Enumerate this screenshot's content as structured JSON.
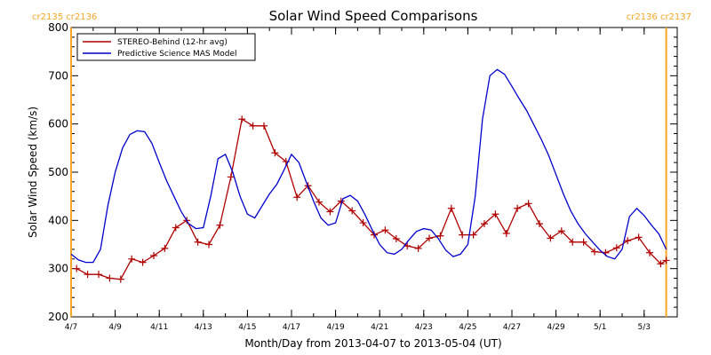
{
  "chart_data": {
    "type": "line",
    "title": "Solar Wind Speed Comparisons",
    "xlabel": "Month/Day from 2013-04-07 to 2013-05-04 (UT)",
    "ylabel": "Solar Wind Speed (km/s)",
    "xlim": [
      "2013-04-07",
      "2013-05-04"
    ],
    "ylim": [
      200,
      800
    ],
    "yticks": [
      200,
      300,
      400,
      500,
      600,
      700,
      800
    ],
    "xticks": [
      {
        "date": "2013-04-07",
        "label": "4/7"
      },
      {
        "date": "2013-04-09",
        "label": "4/9"
      },
      {
        "date": "2013-04-11",
        "label": "4/11"
      },
      {
        "date": "2013-04-13",
        "label": "4/13"
      },
      {
        "date": "2013-04-15",
        "label": "4/15"
      },
      {
        "date": "2013-04-17",
        "label": "4/17"
      },
      {
        "date": "2013-04-19",
        "label": "4/19"
      },
      {
        "date": "2013-04-21",
        "label": "4/21"
      },
      {
        "date": "2013-04-23",
        "label": "4/23"
      },
      {
        "date": "2013-04-25",
        "label": "4/25"
      },
      {
        "date": "2013-04-27",
        "label": "4/27"
      },
      {
        "date": "2013-04-29",
        "label": "4/29"
      },
      {
        "date": "2013-05-01",
        "label": "5/1"
      },
      {
        "date": "2013-05-03",
        "label": "5/3"
      }
    ],
    "legend_position": "top-left",
    "carrington_markers": [
      {
        "label": "cr2135 cr2136",
        "date": "2013-04-07",
        "color": "#f5a623",
        "side": "left"
      },
      {
        "label": "cr2136 cr2137",
        "date": "2013-05-04",
        "color": "#f5a623",
        "side": "right"
      }
    ],
    "series": [
      {
        "name": "STEREO-Behind (12-hr avg)",
        "color": "#b00000",
        "marker": "plus",
        "points": [
          [
            "2013-04-07T06:00",
            300
          ],
          [
            "2013-04-07T18:00",
            288
          ],
          [
            "2013-04-08T06:00",
            288
          ],
          [
            "2013-04-08T18:00",
            280
          ],
          [
            "2013-04-09T06:00",
            278
          ],
          [
            "2013-04-09T18:00",
            320
          ],
          [
            "2013-04-10T06:00",
            313
          ],
          [
            "2013-04-10T18:00",
            327
          ],
          [
            "2013-04-11T06:00",
            342
          ],
          [
            "2013-04-11T18:00",
            385
          ],
          [
            "2013-04-12T06:00",
            400
          ],
          [
            "2013-04-12T18:00",
            355
          ],
          [
            "2013-04-13T06:00",
            350
          ],
          [
            "2013-04-13T18:00",
            390
          ],
          [
            "2013-04-14T06:00",
            490
          ],
          [
            "2013-04-14T18:00",
            610
          ],
          [
            "2013-04-15T06:00",
            596
          ],
          [
            "2013-04-15T18:00",
            596
          ],
          [
            "2013-04-16T06:00",
            540
          ],
          [
            "2013-04-16T18:00",
            522
          ],
          [
            "2013-04-17T06:00",
            448
          ],
          [
            "2013-04-17T18:00",
            472
          ],
          [
            "2013-04-18T06:00",
            438
          ],
          [
            "2013-04-18T18:00",
            418
          ],
          [
            "2013-04-19T06:00",
            440
          ],
          [
            "2013-04-19T18:00",
            420
          ],
          [
            "2013-04-20T06:00",
            395
          ],
          [
            "2013-04-20T18:00",
            370
          ],
          [
            "2013-04-21T06:00",
            380
          ],
          [
            "2013-04-21T18:00",
            362
          ],
          [
            "2013-04-22T06:00",
            347
          ],
          [
            "2013-04-22T18:00",
            342
          ],
          [
            "2013-04-23T06:00",
            363
          ],
          [
            "2013-04-23T18:00",
            368
          ],
          [
            "2013-04-24T06:00",
            425
          ],
          [
            "2013-04-24T18:00",
            370
          ],
          [
            "2013-04-25T06:00",
            370
          ],
          [
            "2013-04-25T18:00",
            393
          ],
          [
            "2013-04-26T06:00",
            413
          ],
          [
            "2013-04-26T18:00",
            373
          ],
          [
            "2013-04-27T06:00",
            425
          ],
          [
            "2013-04-27T18:00",
            435
          ],
          [
            "2013-04-28T06:00",
            393
          ],
          [
            "2013-04-28T18:00",
            363
          ],
          [
            "2013-04-29T06:00",
            378
          ],
          [
            "2013-04-29T18:00",
            355
          ],
          [
            "2013-04-30T06:00",
            355
          ],
          [
            "2013-04-30T18:00",
            335
          ],
          [
            "2013-05-01T06:00",
            333
          ],
          [
            "2013-05-01T18:00",
            343
          ],
          [
            "2013-05-02T06:00",
            358
          ],
          [
            "2013-05-02T18:00",
            365
          ],
          [
            "2013-05-03T06:00",
            333
          ],
          [
            "2013-05-03T18:00",
            310
          ],
          [
            "2013-05-04T00:00",
            317
          ]
        ]
      },
      {
        "name": "Predictive Science MAS Model",
        "color": "#0000cc",
        "marker": "none",
        "points": [
          [
            "2013-04-07T00:00",
            330
          ],
          [
            "2013-04-07T08:00",
            318
          ],
          [
            "2013-04-07T16:00",
            313
          ],
          [
            "2013-04-08T00:00",
            313
          ],
          [
            "2013-04-08T08:00",
            340
          ],
          [
            "2013-04-08T16:00",
            430
          ],
          [
            "2013-04-09T00:00",
            500
          ],
          [
            "2013-04-09T08:00",
            550
          ],
          [
            "2013-04-09T16:00",
            578
          ],
          [
            "2013-04-10T00:00",
            586
          ],
          [
            "2013-04-10T08:00",
            584
          ],
          [
            "2013-04-10T16:00",
            560
          ],
          [
            "2013-04-11T00:00",
            520
          ],
          [
            "2013-04-11T08:00",
            482
          ],
          [
            "2013-04-11T16:00",
            450
          ],
          [
            "2013-04-12T00:00",
            418
          ],
          [
            "2013-04-12T08:00",
            393
          ],
          [
            "2013-04-12T16:00",
            383
          ],
          [
            "2013-04-13T00:00",
            385
          ],
          [
            "2013-04-13T08:00",
            450
          ],
          [
            "2013-04-13T16:00",
            528
          ],
          [
            "2013-04-14T00:00",
            537
          ],
          [
            "2013-04-14T08:00",
            500
          ],
          [
            "2013-04-14T16:00",
            450
          ],
          [
            "2013-04-15T00:00",
            413
          ],
          [
            "2013-04-15T08:00",
            405
          ],
          [
            "2013-04-15T16:00",
            430
          ],
          [
            "2013-04-16T00:00",
            455
          ],
          [
            "2013-04-16T08:00",
            475
          ],
          [
            "2013-04-16T16:00",
            505
          ],
          [
            "2013-04-17T00:00",
            537
          ],
          [
            "2013-04-17T08:00",
            520
          ],
          [
            "2013-04-17T16:00",
            480
          ],
          [
            "2013-04-18T00:00",
            440
          ],
          [
            "2013-04-18T08:00",
            405
          ],
          [
            "2013-04-18T16:00",
            390
          ],
          [
            "2013-04-19T00:00",
            395
          ],
          [
            "2013-04-19T08:00",
            445
          ],
          [
            "2013-04-19T16:00",
            452
          ],
          [
            "2013-04-20T00:00",
            440
          ],
          [
            "2013-04-20T08:00",
            412
          ],
          [
            "2013-04-20T16:00",
            380
          ],
          [
            "2013-04-21T00:00",
            350
          ],
          [
            "2013-04-21T08:00",
            333
          ],
          [
            "2013-04-21T16:00",
            330
          ],
          [
            "2013-04-22T00:00",
            340
          ],
          [
            "2013-04-22T08:00",
            360
          ],
          [
            "2013-04-22T16:00",
            377
          ],
          [
            "2013-04-23T00:00",
            383
          ],
          [
            "2013-04-23T08:00",
            380
          ],
          [
            "2013-04-23T16:00",
            362
          ],
          [
            "2013-04-24T00:00",
            338
          ],
          [
            "2013-04-24T08:00",
            325
          ],
          [
            "2013-04-24T16:00",
            330
          ],
          [
            "2013-04-25T00:00",
            350
          ],
          [
            "2013-04-25T08:00",
            450
          ],
          [
            "2013-04-25T16:00",
            610
          ],
          [
            "2013-04-26T00:00",
            700
          ],
          [
            "2013-04-26T08:00",
            713
          ],
          [
            "2013-04-26T16:00",
            703
          ],
          [
            "2013-04-27T00:00",
            678
          ],
          [
            "2013-04-27T08:00",
            652
          ],
          [
            "2013-04-27T16:00",
            628
          ],
          [
            "2013-04-28T00:00",
            598
          ],
          [
            "2013-04-28T08:00",
            568
          ],
          [
            "2013-04-28T16:00",
            535
          ],
          [
            "2013-04-29T00:00",
            495
          ],
          [
            "2013-04-29T08:00",
            455
          ],
          [
            "2013-04-29T16:00",
            420
          ],
          [
            "2013-04-30T00:00",
            393
          ],
          [
            "2013-04-30T08:00",
            372
          ],
          [
            "2013-04-30T16:00",
            355
          ],
          [
            "2013-05-01T00:00",
            338
          ],
          [
            "2013-05-01T08:00",
            325
          ],
          [
            "2013-05-01T16:00",
            320
          ],
          [
            "2013-05-02T00:00",
            340
          ],
          [
            "2013-05-02T08:00",
            408
          ],
          [
            "2013-05-02T16:00",
            425
          ],
          [
            "2013-05-03T00:00",
            410
          ],
          [
            "2013-05-03T08:00",
            390
          ],
          [
            "2013-05-03T16:00",
            372
          ],
          [
            "2013-05-04T00:00",
            340
          ]
        ]
      }
    ]
  }
}
